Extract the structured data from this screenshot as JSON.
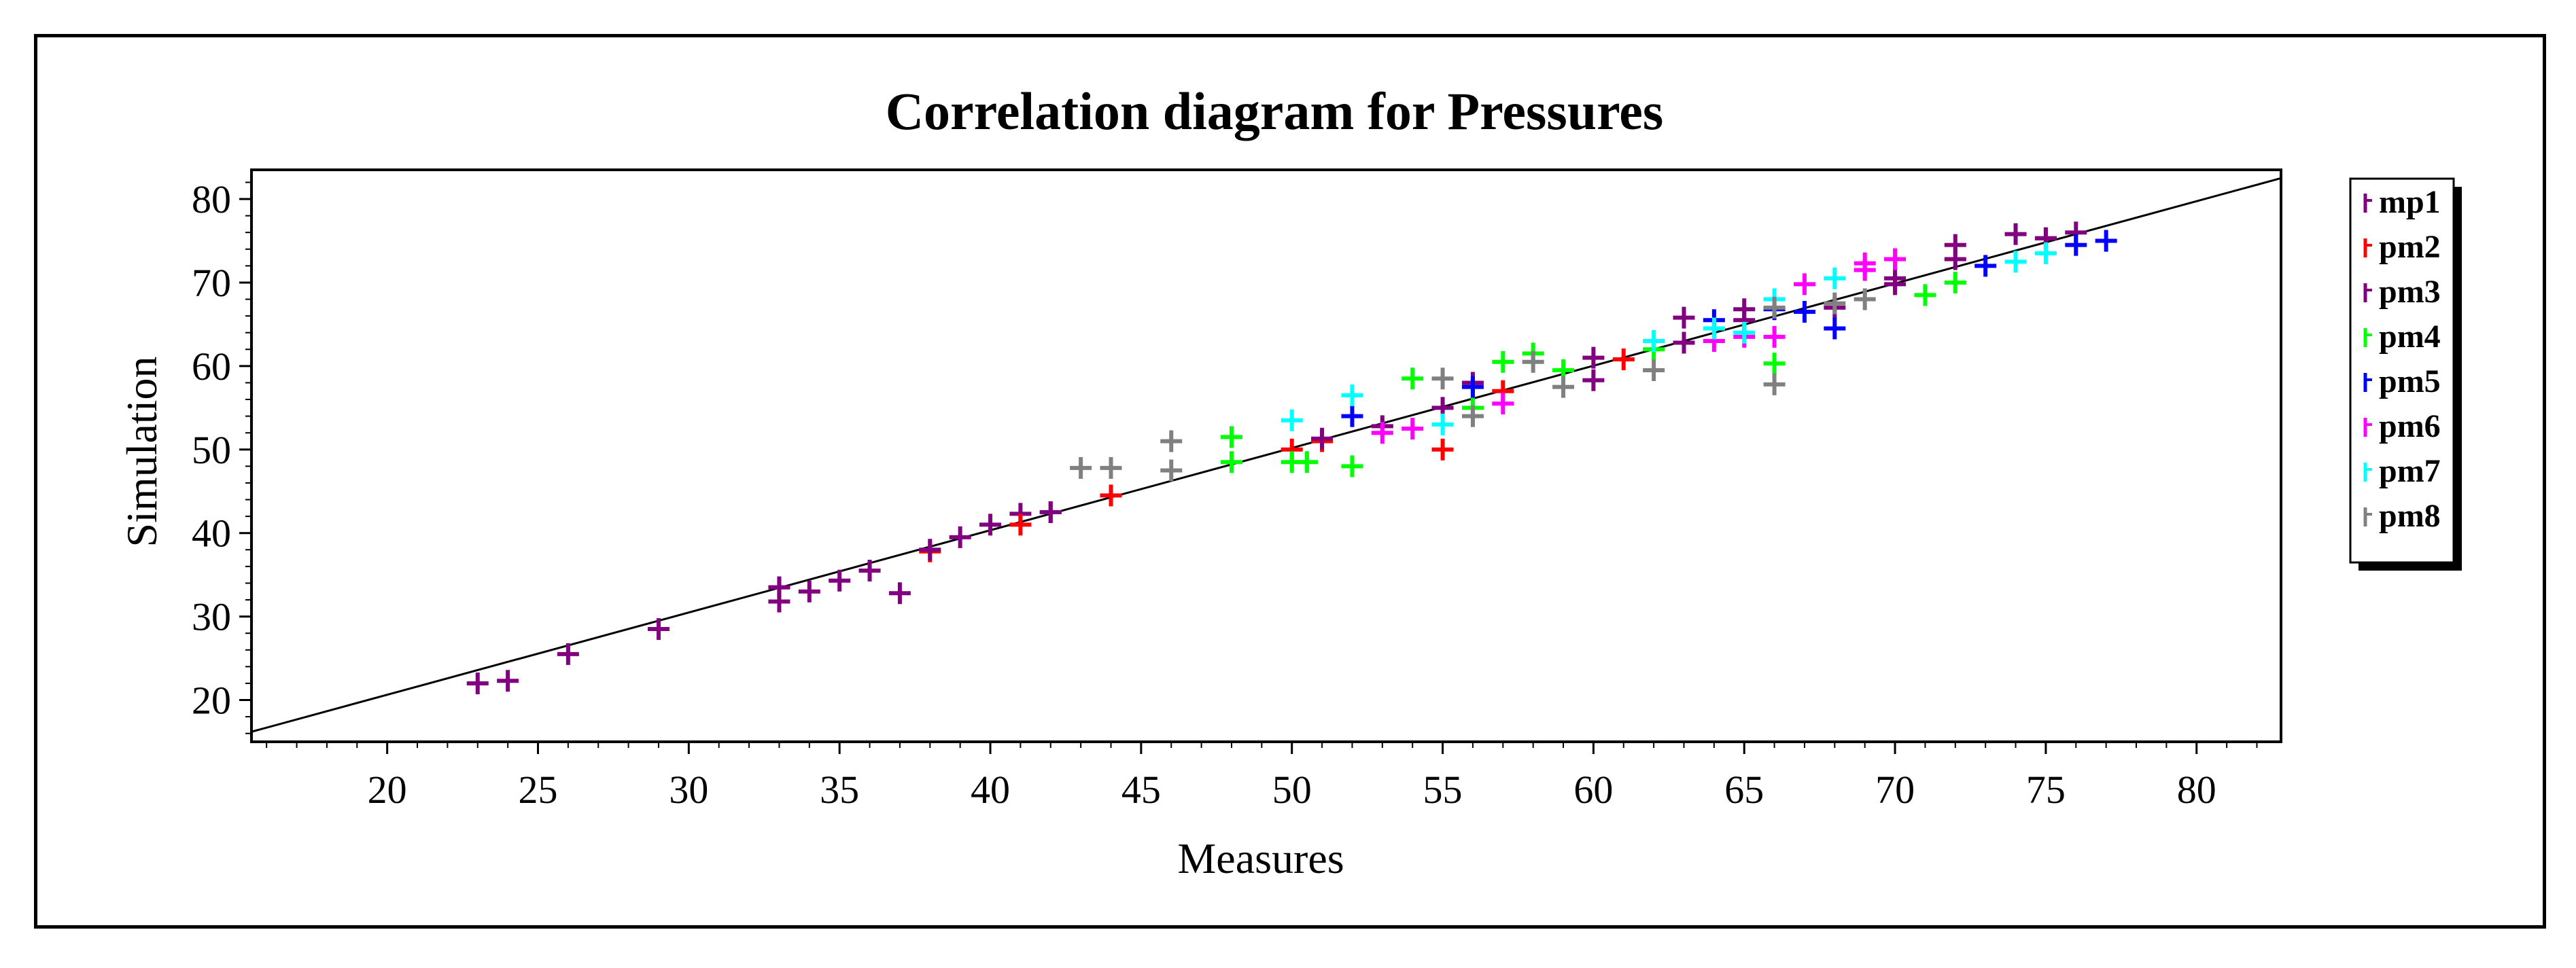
{
  "chart_data": {
    "type": "scatter",
    "title": "Correlation diagram for Pressures",
    "xlabel": "Measures",
    "ylabel": "Simulation",
    "xlim": [
      15.5,
      82.8
    ],
    "ylim": [
      15,
      83.5
    ],
    "xticks": [
      20,
      25,
      30,
      35,
      40,
      45,
      50,
      55,
      60,
      65,
      70,
      75,
      80
    ],
    "yticks": [
      20,
      30,
      40,
      50,
      60,
      70,
      80
    ],
    "reference_line": {
      "x": [
        15.5,
        82.8
      ],
      "y": [
        16.2,
        82.5
      ]
    },
    "legend_position": "right",
    "series": [
      {
        "name": "mp1",
        "color": "#800080",
        "points": [
          [
            23,
            22
          ],
          [
            24,
            22.3
          ],
          [
            26,
            25.5
          ],
          [
            29,
            28.5
          ],
          [
            33,
            31.8
          ],
          [
            33,
            33.5
          ],
          [
            34,
            33
          ],
          [
            35,
            34.3
          ],
          [
            36,
            35.5
          ],
          [
            37,
            32.8
          ],
          [
            39,
            39.5
          ],
          [
            40,
            41
          ],
          [
            41,
            42.3
          ],
          [
            42,
            42.5
          ],
          [
            55,
            55
          ],
          [
            60,
            61
          ],
          [
            63,
            65.8
          ],
          [
            65,
            66.8
          ],
          [
            70,
            69.8
          ],
          [
            72,
            74.5
          ],
          [
            74,
            75.8
          ],
          [
            75,
            75.3
          ],
          [
            76,
            76
          ]
        ]
      },
      {
        "name": "pm2",
        "color": "#ff0000",
        "points": [
          [
            38,
            37.8
          ],
          [
            41,
            41
          ],
          [
            44,
            44.5
          ],
          [
            50,
            50
          ],
          [
            51,
            51
          ],
          [
            55,
            50
          ],
          [
            57,
            57
          ],
          [
            61,
            60.8
          ]
        ]
      },
      {
        "name": "pm3",
        "color": "#800080",
        "points": [
          [
            33,
            33.5
          ],
          [
            38,
            38
          ],
          [
            42,
            42.5
          ],
          [
            51,
            51.3
          ],
          [
            53,
            52.8
          ],
          [
            56,
            58
          ],
          [
            60,
            58.3
          ],
          [
            63,
            62.8
          ],
          [
            65,
            65.5
          ],
          [
            68,
            67
          ],
          [
            70,
            70.5
          ],
          [
            72,
            72.8
          ],
          [
            75,
            75.3
          ]
        ]
      },
      {
        "name": "pm4",
        "color": "#00ff00",
        "points": [
          [
            48,
            51.5
          ],
          [
            48,
            48.5
          ],
          [
            50,
            48.5
          ],
          [
            50.5,
            48.5
          ],
          [
            52,
            48
          ],
          [
            54,
            58.5
          ],
          [
            56,
            55
          ],
          [
            57,
            60.5
          ],
          [
            58,
            61.5
          ],
          [
            59,
            59.5
          ],
          [
            62,
            62
          ],
          [
            66,
            60.3
          ],
          [
            71,
            68.5
          ],
          [
            72,
            70
          ]
        ]
      },
      {
        "name": "pm5",
        "color": "#0000ff",
        "points": [
          [
            52,
            54
          ],
          [
            56,
            57.5
          ],
          [
            64,
            65.5
          ],
          [
            66,
            66.8
          ],
          [
            67,
            66.5
          ],
          [
            68,
            64.5
          ],
          [
            73,
            72
          ],
          [
            76,
            74.5
          ],
          [
            77,
            75
          ]
        ]
      },
      {
        "name": "pm6",
        "color": "#ff00ff",
        "points": [
          [
            53,
            52
          ],
          [
            54,
            52.5
          ],
          [
            57,
            55.5
          ],
          [
            64,
            63
          ],
          [
            65,
            63.5
          ],
          [
            66,
            63.5
          ],
          [
            67,
            69.8
          ],
          [
            69,
            71.5
          ],
          [
            69,
            72.3
          ],
          [
            70,
            72.8
          ]
        ]
      },
      {
        "name": "pm7",
        "color": "#00ffff",
        "points": [
          [
            50,
            53.5
          ],
          [
            52,
            56.5
          ],
          [
            55,
            53
          ],
          [
            62,
            63
          ],
          [
            64,
            64.5
          ],
          [
            65,
            64
          ],
          [
            66,
            68
          ],
          [
            68,
            70.5
          ],
          [
            74,
            72.5
          ],
          [
            75,
            73.5
          ]
        ]
      },
      {
        "name": "pm8",
        "color": "#808080",
        "points": [
          [
            43,
            47.8
          ],
          [
            44,
            47.8
          ],
          [
            46,
            51
          ],
          [
            46,
            47.5
          ],
          [
            55,
            58.5
          ],
          [
            56,
            54
          ],
          [
            58,
            60.5
          ],
          [
            59,
            57.5
          ],
          [
            62,
            59.5
          ],
          [
            66,
            57.8
          ],
          [
            66,
            67
          ],
          [
            68,
            67.5
          ],
          [
            69,
            68
          ]
        ]
      }
    ]
  }
}
